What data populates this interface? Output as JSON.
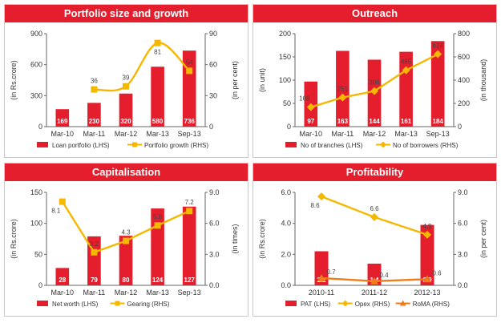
{
  "colors": {
    "panel_header": "#e41e2d",
    "bar": "#e41e2d",
    "line_gold": "#f5b800",
    "line_orange": "#f07d1a",
    "axis": "#666666"
  },
  "chart_data": [
    {
      "type": "bar",
      "title": "Portfolio size and growth",
      "categories": [
        "Mar-10",
        "Mar-11",
        "Mar-12",
        "Mar-13",
        "Sep-13"
      ],
      "ylabel": "(in Rs.crore)",
      "y2label": "(in per cent)",
      "ylim": [
        0,
        900
      ],
      "y2lim": [
        0,
        90
      ],
      "yticks": [
        "0",
        "300",
        "600",
        "900"
      ],
      "y2ticks": [
        "0",
        "30",
        "60",
        "90"
      ],
      "series": [
        {
          "name": "Loan portfolio (LHS)",
          "type": "bar",
          "axis": "left",
          "values": [
            169,
            230,
            320,
            580,
            736
          ],
          "labels": [
            "169",
            "230",
            "320",
            "580",
            "736"
          ]
        },
        {
          "name": "Portfolio growth (RHS)",
          "type": "line",
          "axis": "right",
          "marker": "square",
          "smooth": true,
          "values": [
            null,
            36,
            39,
            81,
            54
          ],
          "labels": [
            "",
            "36",
            "39",
            "81",
            "54"
          ]
        }
      ]
    },
    {
      "type": "bar",
      "title": "Outreach",
      "categories": [
        "Mar-10",
        "Mar-11",
        "Mar-12",
        "Mar-13",
        "Sep-13"
      ],
      "ylabel": "(in unit)",
      "y2label": "(in thousand)",
      "ylim": [
        0,
        200
      ],
      "y2lim": [
        0,
        800
      ],
      "yticks": [
        "0",
        "50",
        "100",
        "150",
        "200"
      ],
      "y2ticks": [
        "0",
        "200",
        "400",
        "600",
        "800"
      ],
      "series": [
        {
          "name": "No of branches (LHS)",
          "type": "bar",
          "axis": "left",
          "values": [
            97,
            163,
            144,
            161,
            184
          ],
          "labels": [
            "97",
            "163",
            "144",
            "161",
            "184"
          ]
        },
        {
          "name": "No of borrowers (RHS)",
          "type": "line",
          "axis": "right",
          "marker": "diamond",
          "smooth": false,
          "values": [
            168,
            251,
            306,
            485,
            624
          ],
          "labels": [
            "168",
            "251",
            "306",
            "485",
            "624"
          ]
        }
      ]
    },
    {
      "type": "bar",
      "title": "Capitalisation",
      "categories": [
        "Mar-10",
        "Mar-11",
        "Mar-12",
        "Mar-13",
        "Sep-13"
      ],
      "ylabel": "(in Rs.crore)",
      "y2label": "(in times)",
      "ylim": [
        0,
        150
      ],
      "y2lim": [
        0,
        9
      ],
      "yticks": [
        "0",
        "50",
        "100",
        "150"
      ],
      "y2ticks": [
        "0.0",
        "3.0",
        "6.0",
        "9.0"
      ],
      "series": [
        {
          "name": "Net worth (LHS)",
          "type": "bar",
          "axis": "left",
          "values": [
            28,
            79,
            80,
            124,
            127
          ],
          "labels": [
            "28",
            "79",
            "80",
            "124",
            "127"
          ]
        },
        {
          "name": "Gearing (RHS)",
          "type": "line",
          "axis": "right",
          "marker": "square",
          "smooth": false,
          "values": [
            8.1,
            3.2,
            4.3,
            5.8,
            7.2
          ],
          "labels": [
            "8.1",
            "3.2",
            "4.3",
            "5.8",
            "7.2"
          ]
        }
      ]
    },
    {
      "type": "bar",
      "title": "Profitability",
      "categories": [
        "2010-11",
        "2011-12",
        "2012-13"
      ],
      "ylabel": "(in Rs.crore)",
      "y2label": "(in per cent)",
      "ylim": [
        0,
        6
      ],
      "y2lim": [
        0,
        9
      ],
      "yticks": [
        "0.0",
        "2.0",
        "4.0",
        "6.0"
      ],
      "y2ticks": [
        "0.0",
        "3.0",
        "6.0",
        "9.0"
      ],
      "series": [
        {
          "name": "PAT (LHS)",
          "type": "bar",
          "axis": "left",
          "values": [
            2.2,
            1.4,
            3.9
          ],
          "labels": [
            "2.2",
            "1.4",
            "3.9"
          ]
        },
        {
          "name": "Opex (RHS)",
          "type": "line",
          "axis": "right",
          "marker": "diamond",
          "smooth": false,
          "values": [
            8.6,
            6.6,
            4.9
          ],
          "labels": [
            "8.6",
            "6.6",
            "4.9"
          ]
        },
        {
          "name": "RoMA (RHS)",
          "type": "line",
          "axis": "right",
          "marker": "triangle",
          "smooth": false,
          "color": "orange",
          "values": [
            0.7,
            0.4,
            0.6
          ],
          "labels": [
            "0.7",
            "0.4",
            "0.6"
          ]
        }
      ]
    }
  ]
}
